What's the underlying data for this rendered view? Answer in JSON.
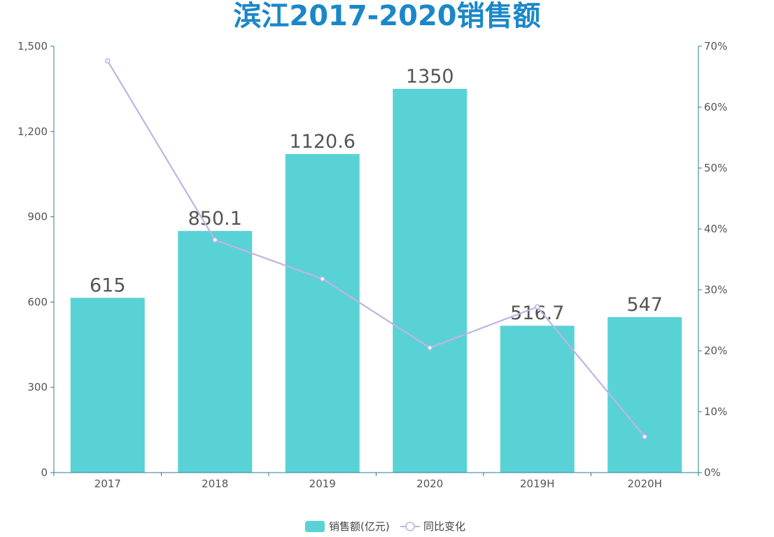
{
  "chart_data": {
    "type": "bar",
    "title": "滨江2017-2020销售额",
    "categories": [
      "2017",
      "2018",
      "2019",
      "2020",
      "2019H",
      "2020H"
    ],
    "series": [
      {
        "name": "销售额(亿元)",
        "type": "bar",
        "axis": "left",
        "color": "#59d2d6",
        "values": [
          615,
          850.1,
          1120.6,
          1350,
          516.7,
          547
        ],
        "labels": [
          "615",
          "850.1",
          "1120.6",
          "1350",
          "516.7",
          "547"
        ]
      },
      {
        "name": "同比变化",
        "type": "line",
        "axis": "right",
        "color": "#c1b3e2",
        "values": [
          67.6,
          38.2,
          31.8,
          20.5,
          27.2,
          5.9
        ]
      }
    ],
    "y_left": {
      "min": 0,
      "max": 1500,
      "ticks": [
        0,
        300,
        600,
        900,
        1200,
        1500
      ],
      "tick_labels": [
        "0",
        "300",
        "600",
        "900",
        "1,200",
        "1,500"
      ]
    },
    "y_right": {
      "min": 0,
      "max": 70,
      "ticks": [
        0,
        10,
        20,
        30,
        40,
        50,
        60,
        70
      ],
      "tick_labels": [
        "0%",
        "10%",
        "20%",
        "30%",
        "40%",
        "50%",
        "60%",
        "70%"
      ]
    },
    "grid": false,
    "legend_position": "bottom-center",
    "axis_color": "#2e7d91"
  }
}
